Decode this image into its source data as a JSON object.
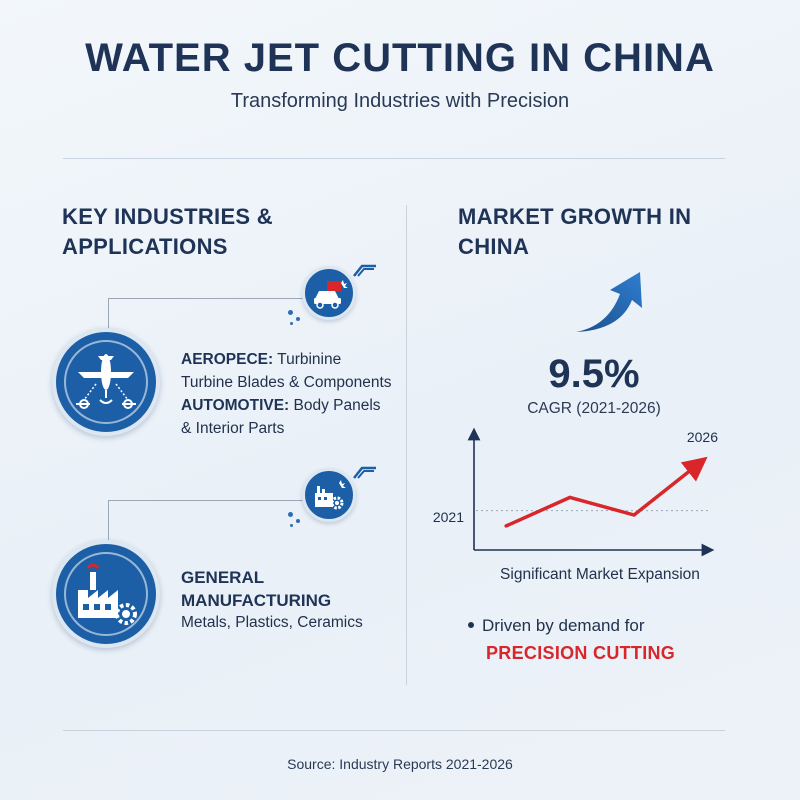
{
  "header": {
    "title": "WATER JET CUTTING IN CHINA",
    "subtitle": "Transforming Industries with Precision"
  },
  "left": {
    "heading_line1": "KEY INDUSTRIES &",
    "heading_line2": "APPLICATIONS",
    "aerospace_label": "AEROPECE:",
    "aerospace_text1": " Turbinine",
    "aerospace_text2": "Turbine Blades & Components",
    "automotive_label": "AUTOMOTIVE:",
    "automotive_text1": " Body Panels",
    "automotive_text2": "& Interior Parts",
    "gm_title1": "GENERAL",
    "gm_title2": "MANUFACTURING",
    "gm_desc": "Metals, Plastics, Ceramics",
    "icons": [
      "airplane-icon",
      "car-icon",
      "factory-gear-icon",
      "factory-icon"
    ]
  },
  "right": {
    "heading_line1": "MARKET GROWTH IN",
    "heading_line2": "CHINA",
    "cagr_value": "9.5%",
    "cagr_label": "CAGR (2021-2026)",
    "chart_caption": "Significant Market Expansion",
    "driven_text": "Driven by demand for",
    "driven_highlight": "PRECISION CUTTING"
  },
  "colors": {
    "primary_blue": "#1c5fa6",
    "accent_red": "#d8262b",
    "text_dark": "#1e3356"
  },
  "chart_data": {
    "type": "line",
    "title": "",
    "xlabel": "",
    "ylabel": "",
    "start_label": "2021",
    "end_label": "2026",
    "series": [
      {
        "values": [
          1.0,
          2.3,
          1.5,
          3.8
        ]
      }
    ],
    "ylim": [
      0,
      5
    ],
    "reference_line": 1.7,
    "grid": false
  },
  "footer": {
    "source": "Source: Industry Reports 2021-2026"
  }
}
